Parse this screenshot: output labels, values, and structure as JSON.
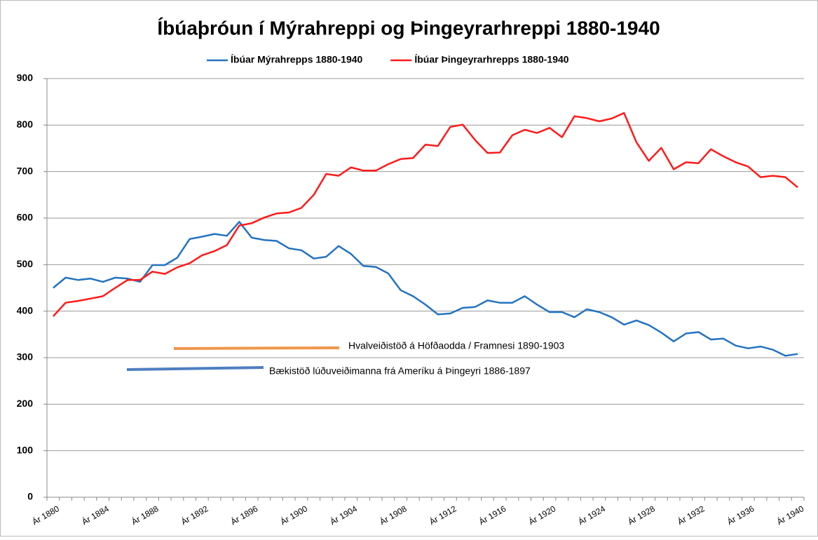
{
  "chart_data": {
    "type": "line",
    "title": "Íbúaþróun í Mýrahreppi og Þingeyrarhreppi 1880-1940",
    "categories": [
      "Ár 1880",
      null,
      null,
      null,
      "Ár 1884",
      null,
      null,
      null,
      "Ár 1888",
      null,
      null,
      null,
      "Ár 1892",
      null,
      null,
      null,
      "Ár 1896",
      null,
      null,
      null,
      "Ár 1900",
      null,
      null,
      null,
      "Ár 1904",
      null,
      null,
      null,
      "Ár 1908",
      null,
      null,
      null,
      "Ár 1912",
      null,
      null,
      null,
      "Ár 1916",
      null,
      null,
      null,
      "Ár 1920",
      null,
      null,
      null,
      "Ár 1924",
      null,
      null,
      null,
      "Ár 1928",
      null,
      null,
      null,
      "Ár 1932",
      null,
      null,
      null,
      "Ár 1936",
      null,
      null,
      null,
      "Ár 1940"
    ],
    "series": [
      {
        "name": "Íbúar Mýrahrepps 1880-1940",
        "color": "#2473c0",
        "values": [
          450,
          472,
          467,
          470,
          463,
          472,
          470,
          463,
          499,
          499,
          515,
          555,
          560,
          566,
          562,
          592,
          558,
          553,
          551,
          535,
          531,
          513,
          517,
          540,
          523,
          497,
          495,
          481,
          445,
          432,
          414,
          393,
          395,
          407,
          409,
          423,
          418,
          418,
          432,
          414,
          398,
          398,
          387,
          404,
          398,
          387,
          371,
          380,
          370,
          354,
          335,
          352,
          355,
          339,
          341,
          326,
          320,
          324,
          317,
          304,
          308
        ]
      },
      {
        "name": "Íbúar Þingeyrarhrepps 1880-1940",
        "color": "#ff1a1a",
        "values": [
          389,
          418,
          422,
          427,
          432,
          450,
          467,
          467,
          485,
          480,
          494,
          503,
          520,
          529,
          542,
          584,
          589,
          601,
          610,
          612,
          622,
          650,
          695,
          691,
          709,
          702,
          702,
          716,
          727,
          729,
          758,
          755,
          796,
          801,
          768,
          740,
          741,
          778,
          790,
          783,
          794,
          774,
          819,
          815,
          808,
          814,
          826,
          763,
          723,
          751,
          705,
          720,
          718,
          748,
          733,
          720,
          711,
          688,
          691,
          688,
          666
        ]
      }
    ],
    "annotations": [
      "Hvalveiðistöð á Höfðaodda  / Framnesi 1890-1903",
      "Bækistöð lúðuveiðimanna frá Ameríku á Þingeyri 1886-1897"
    ],
    "ylim": [
      0,
      900
    ],
    "yticks": [
      0,
      100,
      200,
      300,
      400,
      500,
      600,
      700,
      800,
      900
    ],
    "grid": true,
    "legend": "top"
  }
}
